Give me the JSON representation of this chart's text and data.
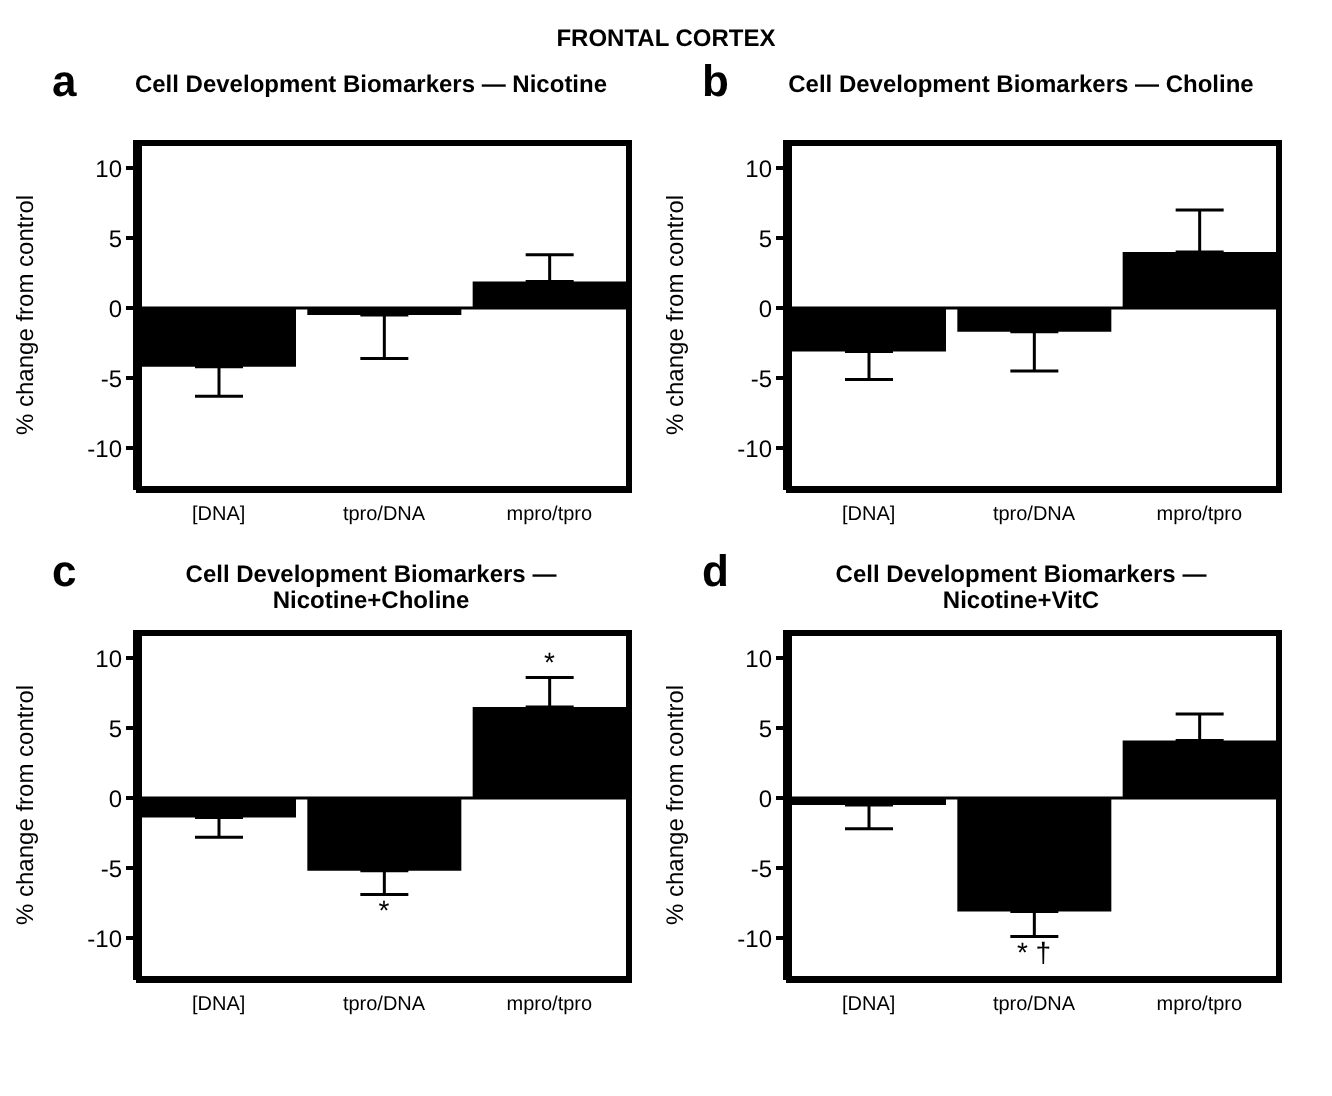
{
  "chart_data": [
    {
      "type": "bar",
      "title": "Cell Development Biomarkers — Nicotine",
      "ylabel": "% change from control",
      "categories": [
        "[DNA]",
        "tpro/DNA",
        "mpro/tpro"
      ],
      "values": [
        -4.2,
        -0.5,
        1.9
      ],
      "errors": [
        [
          -6.3,
          -4.2
        ],
        [
          -3.6,
          -0.5
        ],
        [
          1.9,
          3.8
        ]
      ],
      "color": "#000000",
      "ylim": [
        -13,
        12
      ],
      "yticks": [
        -10,
        -5,
        0,
        5,
        10
      ],
      "ref_lines": [
        {
          "axis": "y",
          "value": 0
        }
      ],
      "grid": false,
      "legend": false,
      "annotations": [
        "FRONTAL CORTEX",
        "a"
      ]
    },
    {
      "type": "bar",
      "title": "Cell Development Biomarkers — Choline",
      "ylabel": "% change from control",
      "categories": [
        "[DNA]",
        "tpro/DNA",
        "mpro/tpro"
      ],
      "values": [
        -3.1,
        -1.7,
        4.0
      ],
      "errors": [
        [
          -5.1,
          -3.1
        ],
        [
          -4.5,
          -1.7
        ],
        [
          4.0,
          7.0
        ]
      ],
      "color": "#000000",
      "ylim": [
        -13,
        12
      ],
      "yticks": [
        -10,
        -5,
        0,
        5,
        10
      ],
      "ref_lines": [
        {
          "axis": "y",
          "value": 0
        }
      ],
      "grid": false,
      "legend": false,
      "annotations": [
        "b"
      ]
    },
    {
      "type": "bar",
      "title": "Cell Development Biomarkers — Nicotine+Choline",
      "ylabel": "% change from control",
      "categories": [
        "[DNA]",
        "tpro/DNA",
        "mpro/tpro"
      ],
      "values": [
        -1.4,
        -5.2,
        6.5
      ],
      "errors": [
        [
          -2.8,
          -1.4
        ],
        [
          -6.9,
          -5.2
        ],
        [
          6.5,
          8.6
        ]
      ],
      "color": "#000000",
      "ylim": [
        -13,
        12
      ],
      "yticks": [
        -10,
        -5,
        0,
        5,
        10
      ],
      "ref_lines": [
        {
          "axis": "y",
          "value": 0
        }
      ],
      "grid": false,
      "legend": false,
      "annotations": [
        "c",
        {
          "text": "*",
          "x": "tpro/DNA",
          "y": -6.9
        },
        {
          "text": "*",
          "x": "mpro/tpro",
          "y": 8.6
        }
      ]
    },
    {
      "type": "bar",
      "title": "Cell Development Biomarkers — Nicotine+VitC",
      "ylabel": "% change from control",
      "categories": [
        "[DNA]",
        "tpro/DNA",
        "mpro/tpro"
      ],
      "values": [
        -0.5,
        -8.1,
        4.1
      ],
      "errors": [
        [
          -2.2,
          -0.5
        ],
        [
          -9.9,
          -8.1
        ],
        [
          4.1,
          6.0
        ]
      ],
      "color": "#000000",
      "ylim": [
        -13,
        12
      ],
      "yticks": [
        -10,
        -5,
        0,
        5,
        10
      ],
      "ref_lines": [
        {
          "axis": "y",
          "value": 0
        }
      ],
      "grid": false,
      "legend": false,
      "annotations": [
        "d",
        {
          "text": "* †",
          "x": "tpro/DNA",
          "y": -9.9
        }
      ]
    }
  ]
}
